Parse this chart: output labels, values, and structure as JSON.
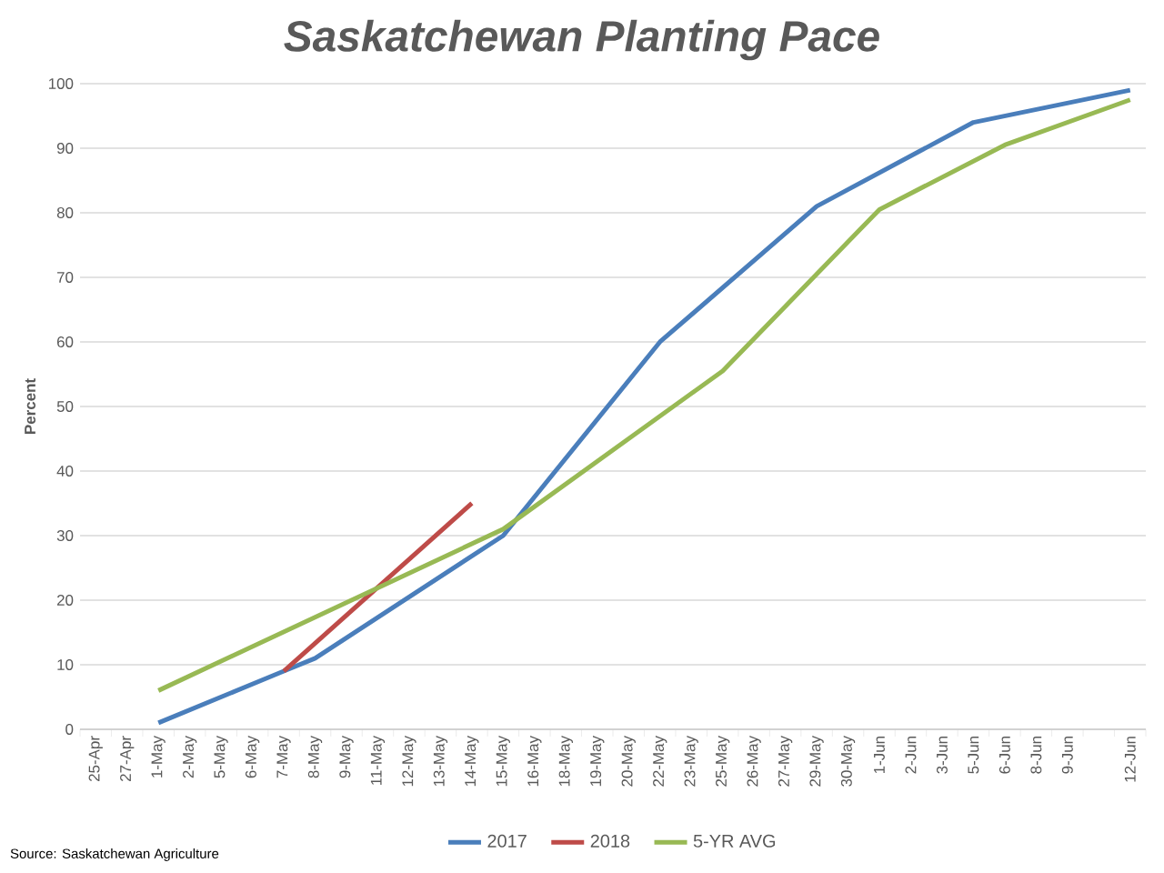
{
  "chart_data": {
    "type": "line",
    "title": "Saskatchewan Planting Pace",
    "ylabel": "Percent",
    "categories": [
      "25-Apr",
      "27-Apr",
      "1-May",
      "2-May",
      "5-May",
      "6-May",
      "7-May",
      "8-May",
      "9-May",
      "11-May",
      "12-May",
      "13-May",
      "14-May",
      "15-May",
      "16-May",
      "18-May",
      "19-May",
      "20-May",
      "22-May",
      "23-May",
      "25-May",
      "26-May",
      "27-May",
      "29-May",
      "30-May",
      "1-Jun",
      "2-Jun",
      "3-Jun",
      "5-Jun",
      "6-Jun",
      "8-Jun",
      "9-Jun",
      null,
      "12-Jun"
    ],
    "series": [
      {
        "name": "2017",
        "color": "#4a7ebb",
        "values": [
          null,
          null,
          1,
          null,
          null,
          null,
          9,
          11,
          null,
          null,
          null,
          null,
          null,
          30,
          null,
          null,
          null,
          null,
          60,
          null,
          null,
          null,
          null,
          81,
          null,
          null,
          null,
          null,
          94,
          null,
          null,
          null,
          null,
          99
        ]
      },
      {
        "name": "2018",
        "color": "#be4b48",
        "values": [
          null,
          null,
          null,
          null,
          null,
          null,
          9,
          null,
          null,
          null,
          null,
          null,
          35,
          null,
          null,
          null,
          null,
          null,
          null,
          null,
          null,
          null,
          null,
          null,
          null,
          null,
          null,
          null,
          null,
          null,
          null,
          null,
          null,
          null
        ]
      },
      {
        "name": "5-YR AVG",
        "color": "#98b954",
        "values": [
          null,
          null,
          6,
          null,
          null,
          null,
          null,
          null,
          null,
          null,
          null,
          null,
          null,
          31,
          null,
          null,
          null,
          null,
          null,
          null,
          55.5,
          null,
          null,
          null,
          null,
          80.5,
          null,
          null,
          null,
          90.5,
          null,
          null,
          null,
          97.5
        ]
      }
    ],
    "ylim": [
      0,
      100
    ],
    "yticks": [
      0,
      10,
      20,
      30,
      40,
      50,
      60,
      70,
      80,
      90,
      100
    ],
    "grid": "y",
    "legend": "bottom",
    "marker": "none",
    "line_style": "solid",
    "annotations": [
      "Source: Saskatchewan Agriculture"
    ]
  }
}
